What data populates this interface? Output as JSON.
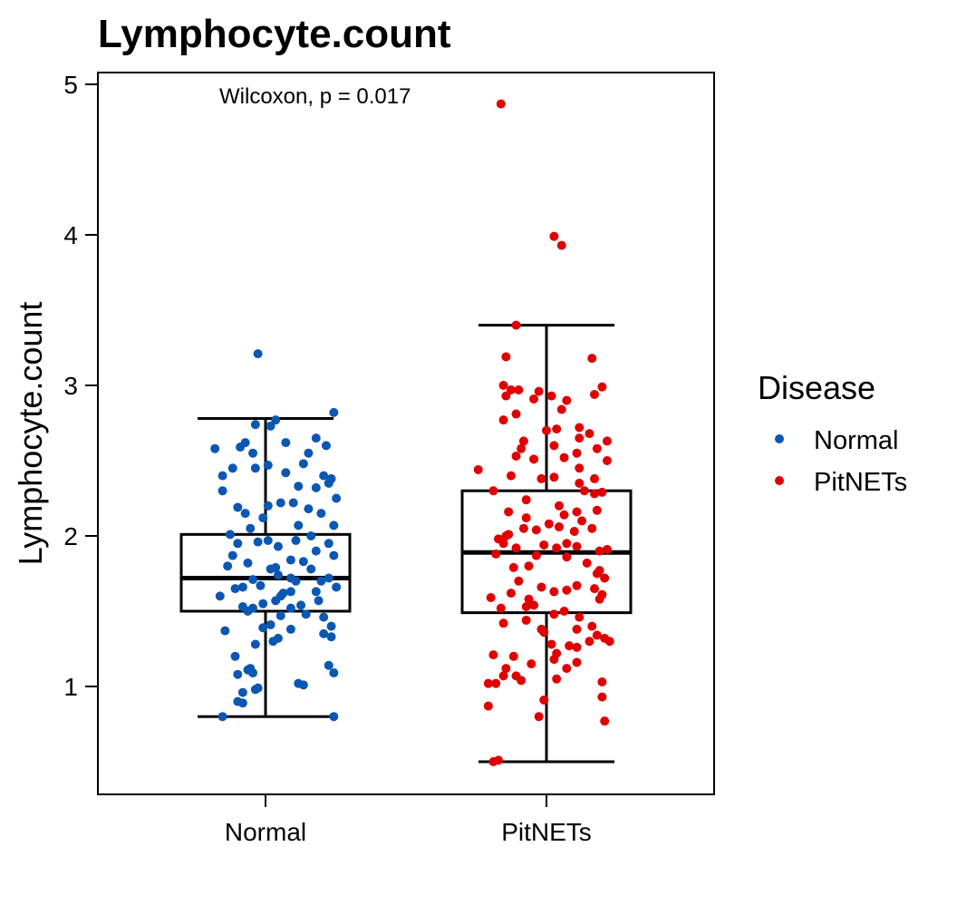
{
  "chart_data": {
    "type": "box",
    "title": "Lymphocyte.count",
    "xlabel": "",
    "ylabel": "Lymphocyte.count",
    "ylim": [
      0.3,
      5.08
    ],
    "yticks": [
      1,
      2,
      3,
      4,
      5
    ],
    "ytick_labels": [
      "1",
      "2",
      "3",
      "4",
      "5"
    ],
    "categories": [
      "Normal",
      "PitNETs"
    ],
    "annotation": "Wilcoxon, p = 0.017",
    "legend": {
      "title": "Disease",
      "position": "right",
      "entries": [
        {
          "label": "Normal",
          "color": "#0b57b3"
        },
        {
          "label": "PitNETs",
          "color": "#e00000"
        }
      ]
    },
    "boxes": [
      {
        "group": "Normal",
        "whisker_low": 0.8,
        "q1": 1.5,
        "median": 1.72,
        "q3": 2.01,
        "whisker_high": 2.78
      },
      {
        "group": "PitNETs",
        "whisker_low": 0.5,
        "q1": 1.49,
        "median": 1.89,
        "q3": 2.3,
        "whisker_high": 3.4
      }
    ],
    "points": {
      "Normal": [
        [
          -0.17,
          0.8
        ],
        [
          0.27,
          0.8
        ],
        [
          -0.11,
          0.9
        ],
        [
          -0.09,
          0.89
        ],
        [
          -0.09,
          0.96
        ],
        [
          -0.03,
          0.99
        ],
        [
          -0.04,
          0.98
        ],
        [
          0.15,
          1.01
        ],
        [
          0.13,
          1.02
        ],
        [
          -0.11,
          1.08
        ],
        [
          -0.06,
          1.12
        ],
        [
          -0.07,
          1.11
        ],
        [
          -0.05,
          1.09
        ],
        [
          0.27,
          1.09
        ],
        [
          0.25,
          1.14
        ],
        [
          -0.04,
          1.28
        ],
        [
          0.03,
          1.3
        ],
        [
          0.05,
          1.32
        ],
        [
          0.26,
          1.33
        ],
        [
          0.23,
          1.35
        ],
        [
          0.26,
          1.4
        ],
        [
          -0.16,
          1.37
        ],
        [
          0.1,
          1.38
        ],
        [
          -0.01,
          1.39
        ],
        [
          0.02,
          1.41
        ],
        [
          0.16,
          1.48
        ],
        [
          0.23,
          1.46
        ],
        [
          0.1,
          1.52
        ],
        [
          0.14,
          1.54
        ],
        [
          -0.07,
          1.5
        ],
        [
          -0.05,
          1.52
        ],
        [
          -0.09,
          1.53
        ],
        [
          -0.01,
          1.55
        ],
        [
          0.04,
          1.57
        ],
        [
          0.06,
          1.6
        ],
        [
          0.21,
          1.57
        ],
        [
          0.28,
          1.66
        ],
        [
          0.2,
          1.63
        ],
        [
          -0.12,
          1.65
        ],
        [
          0.25,
          1.72
        ],
        [
          -0.09,
          1.66
        ],
        [
          0.07,
          1.62
        ],
        [
          -0.05,
          1.71
        ],
        [
          -0.02,
          1.67
        ],
        [
          0.12,
          1.7
        ],
        [
          0.04,
          1.79
        ],
        [
          0.05,
          1.74
        ],
        [
          0.15,
          1.83
        ],
        [
          0.22,
          1.7
        ],
        [
          -0.15,
          1.8
        ],
        [
          -0.07,
          1.82
        ],
        [
          0.02,
          1.78
        ],
        [
          0.1,
          1.72
        ],
        [
          0.18,
          1.78
        ],
        [
          -0.13,
          1.87
        ],
        [
          0.27,
          1.87
        ],
        [
          0.2,
          1.9
        ],
        [
          0.1,
          1.84
        ],
        [
          0.05,
          1.93
        ],
        [
          -0.11,
          1.95
        ],
        [
          0.25,
          1.95
        ],
        [
          0.01,
          1.97
        ],
        [
          -0.03,
          1.96
        ],
        [
          0.12,
          1.97
        ],
        [
          -0.14,
          2.01
        ],
        [
          0.18,
          2.0
        ],
        [
          0.27,
          2.07
        ],
        [
          -0.06,
          2.05
        ],
        [
          0.13,
          2.07
        ],
        [
          -0.01,
          2.12
        ],
        [
          0.22,
          2.15
        ],
        [
          -0.08,
          2.15
        ],
        [
          0.17,
          2.18
        ],
        [
          0.06,
          2.22
        ],
        [
          0.11,
          2.22
        ],
        [
          0.01,
          2.2
        ],
        [
          -0.11,
          2.19
        ],
        [
          0.28,
          2.25
        ],
        [
          -0.17,
          2.3
        ],
        [
          0.2,
          2.32
        ],
        [
          0.13,
          2.33
        ],
        [
          0.25,
          2.35
        ],
        [
          -0.17,
          2.4
        ],
        [
          0.23,
          2.4
        ],
        [
          0.26,
          2.38
        ],
        [
          0.08,
          2.42
        ],
        [
          -0.04,
          2.45
        ],
        [
          0.01,
          2.47
        ],
        [
          -0.13,
          2.45
        ],
        [
          0.15,
          2.48
        ],
        [
          -0.05,
          2.55
        ],
        [
          0.17,
          2.55
        ],
        [
          0.24,
          2.6
        ],
        [
          -0.1,
          2.59
        ],
        [
          0.08,
          2.62
        ],
        [
          -0.2,
          2.58
        ],
        [
          0.2,
          2.65
        ],
        [
          -0.08,
          2.62
        ],
        [
          0.02,
          2.73
        ],
        [
          0.04,
          2.77
        ],
        [
          0.27,
          2.82
        ],
        [
          -0.04,
          2.74
        ],
        [
          -0.03,
          3.21
        ],
        [
          0.1,
          1.63
        ],
        [
          -0.18,
          1.6
        ],
        [
          0.06,
          1.47
        ],
        [
          -0.12,
          1.2
        ]
      ],
      "PitNETs": [
        [
          -0.21,
          0.5
        ],
        [
          -0.19,
          0.51
        ],
        [
          -0.03,
          0.8
        ],
        [
          0.23,
          0.77
        ],
        [
          -0.01,
          0.91
        ],
        [
          -0.23,
          0.87
        ],
        [
          0.22,
          0.93
        ],
        [
          0.22,
          1.03
        ],
        [
          -0.23,
          1.02
        ],
        [
          -0.2,
          1.02
        ],
        [
          -0.1,
          1.04
        ],
        [
          0.04,
          1.05
        ],
        [
          -0.17,
          1.07
        ],
        [
          -0.12,
          1.07
        ],
        [
          -0.16,
          1.12
        ],
        [
          0.08,
          1.12
        ],
        [
          0.12,
          1.16
        ],
        [
          -0.06,
          1.15
        ],
        [
          0.03,
          1.18
        ],
        [
          -0.21,
          1.21
        ],
        [
          -0.13,
          1.2
        ],
        [
          0.04,
          1.22
        ],
        [
          0.12,
          1.26
        ],
        [
          0.25,
          1.3
        ],
        [
          0.23,
          1.32
        ],
        [
          0.2,
          1.34
        ],
        [
          0.09,
          1.27
        ],
        [
          0.17,
          1.3
        ],
        [
          0.02,
          1.28
        ],
        [
          -0.01,
          1.36
        ],
        [
          -0.02,
          1.38
        ],
        [
          0.12,
          1.38
        ],
        [
          0.18,
          1.4
        ],
        [
          -0.17,
          1.42
        ],
        [
          -0.08,
          1.44
        ],
        [
          0.13,
          1.46
        ],
        [
          0.07,
          1.5
        ],
        [
          0.03,
          1.48
        ],
        [
          -0.18,
          1.52
        ],
        [
          -0.08,
          1.53
        ],
        [
          -0.05,
          1.54
        ],
        [
          0.21,
          1.58
        ],
        [
          -0.22,
          1.59
        ],
        [
          -0.07,
          1.58
        ],
        [
          0.22,
          1.61
        ],
        [
          0.08,
          1.64
        ],
        [
          0.03,
          1.63
        ],
        [
          -0.14,
          1.62
        ],
        [
          -0.02,
          1.66
        ],
        [
          0.12,
          1.67
        ],
        [
          -0.11,
          1.7
        ],
        [
          0.19,
          1.65
        ],
        [
          0.23,
          1.72
        ],
        [
          0.2,
          1.75
        ],
        [
          -0.13,
          1.79
        ],
        [
          -0.07,
          1.8
        ],
        [
          0.16,
          1.82
        ],
        [
          0.21,
          1.77
        ],
        [
          -0.2,
          1.88
        ],
        [
          0.08,
          1.86
        ],
        [
          -0.04,
          1.87
        ],
        [
          0.21,
          1.9
        ],
        [
          0.24,
          1.91
        ],
        [
          -0.12,
          1.92
        ],
        [
          0.04,
          1.92
        ],
        [
          -0.17,
          1.95
        ],
        [
          -0.01,
          1.94
        ],
        [
          0.08,
          1.95
        ],
        [
          0.12,
          1.93
        ],
        [
          -0.19,
          1.98
        ],
        [
          -0.15,
          2.01
        ],
        [
          0.11,
          2.03
        ],
        [
          -0.04,
          2.04
        ],
        [
          0.18,
          2.05
        ],
        [
          -0.16,
          2.0
        ],
        [
          -0.09,
          2.05
        ],
        [
          0.05,
          2.06
        ],
        [
          0.01,
          2.08
        ],
        [
          0.14,
          2.1
        ],
        [
          -0.08,
          2.12
        ],
        [
          0.07,
          2.14
        ],
        [
          -0.15,
          2.16
        ],
        [
          0.12,
          2.16
        ],
        [
          0.2,
          2.17
        ],
        [
          0.05,
          2.2
        ],
        [
          -0.08,
          2.24
        ],
        [
          0.19,
          2.28
        ],
        [
          -0.21,
          2.3
        ],
        [
          0.15,
          2.3
        ],
        [
          0.22,
          2.29
        ],
        [
          0.13,
          2.35
        ],
        [
          0.19,
          2.38
        ],
        [
          -0.02,
          2.38
        ],
        [
          0.03,
          2.39
        ],
        [
          -0.14,
          2.4
        ],
        [
          -0.27,
          2.44
        ],
        [
          0.13,
          2.45
        ],
        [
          0.24,
          2.5
        ],
        [
          -0.05,
          2.51
        ],
        [
          0.07,
          2.52
        ],
        [
          0.12,
          2.55
        ],
        [
          0.2,
          2.58
        ],
        [
          -0.12,
          2.53
        ],
        [
          -0.1,
          2.58
        ],
        [
          0.03,
          2.6
        ],
        [
          0.13,
          2.65
        ],
        [
          -0.09,
          2.63
        ],
        [
          0.24,
          2.63
        ],
        [
          0.0,
          2.7
        ],
        [
          0.04,
          2.71
        ],
        [
          0.17,
          2.68
        ],
        [
          0.13,
          2.72
        ],
        [
          -0.17,
          2.77
        ],
        [
          -0.12,
          2.81
        ],
        [
          0.06,
          2.84
        ],
        [
          0.08,
          2.9
        ],
        [
          0.02,
          2.93
        ],
        [
          -0.05,
          2.91
        ],
        [
          -0.16,
          2.93
        ],
        [
          -0.11,
          2.97
        ],
        [
          -0.14,
          2.97
        ],
        [
          0.19,
          2.94
        ],
        [
          0.22,
          2.99
        ],
        [
          -0.17,
          3.0
        ],
        [
          -0.03,
          2.96
        ],
        [
          -0.16,
          3.19
        ],
        [
          0.18,
          3.18
        ],
        [
          -0.12,
          3.4
        ],
        [
          0.03,
          3.99
        ],
        [
          0.06,
          3.93
        ],
        [
          -0.18,
          4.87
        ]
      ]
    }
  }
}
